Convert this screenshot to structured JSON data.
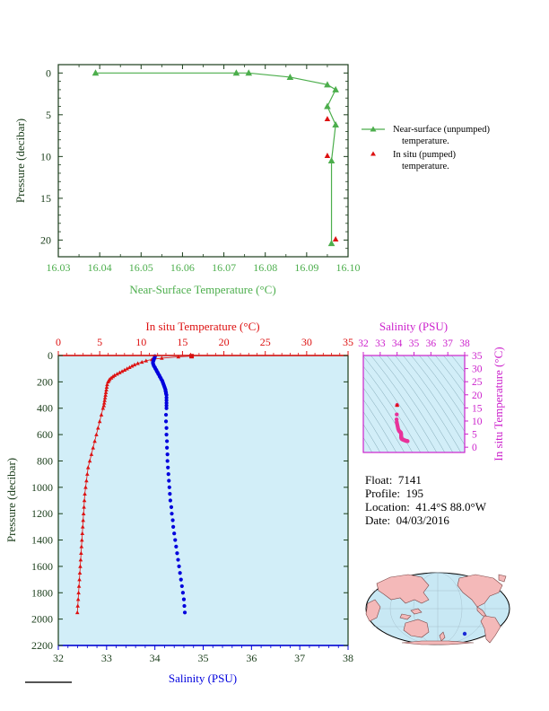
{
  "colors": {
    "green": "#4cae4c",
    "red": "#dd1111",
    "blue": "#0000dd",
    "magenta": "#cc22cc",
    "panel_bg": "#d2eef8",
    "axis_dark": "#1a3d1a",
    "land": "#f4b9b9",
    "ocean": "#c8e8f4"
  },
  "legend": {
    "near_surface_line1": "Near-surface (unpumped)",
    "near_surface_line2": "temperature.",
    "in_situ_line1": "In situ (pumped)",
    "in_situ_line2": "temperature."
  },
  "float_info": {
    "float_label": "Float:",
    "float_value": "7141",
    "profile_label": "Profile:",
    "profile_value": "195",
    "location_label": "Location:",
    "location_value": "41.4°S  88.0°W",
    "date_label": "Date:",
    "date_value": "04/03/2016"
  },
  "chart_data": [
    {
      "type": "line",
      "xlabel": "Near-Surface Temperature (°C)",
      "ylabel": "Pressure (decibar)",
      "xlim": [
        16.03,
        16.1
      ],
      "ylim": [
        22,
        -1
      ],
      "xticks": [
        16.03,
        16.04,
        16.05,
        16.06,
        16.07,
        16.08,
        16.09,
        16.1
      ],
      "xtick_labels": [
        "16.03",
        "16.04",
        "16.05",
        "16.06",
        "16.07",
        "16.08",
        "16.09",
        "16.10"
      ],
      "yticks": [
        0,
        5,
        10,
        15,
        20
      ],
      "ytick_labels": [
        "0",
        "5",
        "10",
        "15",
        "20"
      ],
      "series": [
        {
          "name": "Near-surface (unpumped) temperature.",
          "x": [
            16.039,
            16.073,
            16.076,
            16.086,
            16.095,
            16.097,
            16.095,
            16.097,
            16.096,
            16.096
          ],
          "y": [
            0.0,
            0.0,
            0.0,
            0.5,
            1.4,
            2.0,
            4.0,
            6.2,
            10.5,
            20.4
          ]
        },
        {
          "name": "In situ (pumped) temperature.",
          "x": [
            16.095,
            16.095,
            16.097
          ],
          "y": [
            5.5,
            9.9,
            19.9
          ]
        }
      ]
    },
    {
      "type": "scatter",
      "ylabel": "Pressure (decibar)",
      "top_xlabel": "In situ Temperature (°C)",
      "bottom_xlabel": "Salinity (PSU)",
      "temp_lim": [
        0,
        35
      ],
      "sal_lim": [
        32,
        38
      ],
      "ylim": [
        2200,
        0
      ],
      "temp_ticks": [
        0,
        5,
        10,
        15,
        20,
        25,
        30,
        35
      ],
      "temp_tick_labels": [
        "0",
        "5",
        "10",
        "15",
        "20",
        "25",
        "30",
        "35"
      ],
      "sal_ticks": [
        32,
        33,
        34,
        35,
        36,
        37,
        38
      ],
      "sal_tick_labels": [
        "32",
        "33",
        "34",
        "35",
        "36",
        "37",
        "38"
      ],
      "yticks": [
        0,
        200,
        400,
        600,
        800,
        1000,
        1200,
        1400,
        1600,
        1800,
        2000,
        2200
      ],
      "ytick_labels": [
        "0",
        "200",
        "400",
        "600",
        "800",
        "1000",
        "1200",
        "1400",
        "1600",
        "1800",
        "2000",
        "2200"
      ],
      "temperature_profile": {
        "pressure": [
          5,
          10,
          20,
          30,
          40,
          50,
          60,
          70,
          80,
          90,
          100,
          110,
          120,
          130,
          140,
          150,
          160,
          170,
          180,
          190,
          200,
          220,
          240,
          260,
          280,
          300,
          320,
          340,
          360,
          380,
          400,
          450,
          500,
          550,
          600,
          650,
          700,
          750,
          800,
          850,
          900,
          950,
          1000,
          1050,
          1100,
          1150,
          1200,
          1250,
          1300,
          1350,
          1400,
          1450,
          1500,
          1550,
          1600,
          1650,
          1700,
          1750,
          1800,
          1850,
          1900,
          1950
        ],
        "temperature": [
          16.1,
          14.5,
          12.5,
          11.3,
          10.6,
          10.1,
          9.6,
          9.2,
          8.9,
          8.6,
          8.3,
          8.0,
          7.7,
          7.4,
          7.1,
          6.8,
          6.6,
          6.4,
          6.2,
          6.1,
          6.0,
          5.9,
          5.85,
          5.8,
          5.75,
          5.7,
          5.65,
          5.6,
          5.55,
          5.5,
          5.4,
          5.2,
          5.0,
          4.8,
          4.6,
          4.4,
          4.2,
          4.0,
          3.8,
          3.6,
          3.5,
          3.4,
          3.3,
          3.2,
          3.15,
          3.1,
          3.05,
          3.0,
          2.95,
          2.9,
          2.85,
          2.8,
          2.75,
          2.7,
          2.65,
          2.6,
          2.55,
          2.5,
          2.45,
          2.4,
          2.35,
          2.3
        ]
      },
      "salinity_profile": {
        "pressure": [
          5,
          10,
          20,
          30,
          40,
          50,
          60,
          70,
          80,
          90,
          100,
          110,
          120,
          130,
          140,
          150,
          160,
          170,
          180,
          190,
          200,
          210,
          220,
          230,
          240,
          250,
          260,
          270,
          280,
          290,
          300,
          320,
          340,
          360,
          380,
          400,
          450,
          500,
          550,
          600,
          650,
          700,
          750,
          800,
          850,
          900,
          950,
          1000,
          1050,
          1100,
          1150,
          1200,
          1250,
          1300,
          1350,
          1400,
          1450,
          1500,
          1550,
          1600,
          1650,
          1700,
          1750,
          1800,
          1850,
          1900,
          1950
        ],
        "salinity": [
          34.0,
          34.0,
          33.99,
          33.98,
          33.97,
          33.96,
          33.96,
          33.97,
          33.98,
          34.0,
          34.01,
          34.03,
          34.04,
          34.06,
          34.07,
          34.09,
          34.1,
          34.12,
          34.13,
          34.15,
          34.16,
          34.17,
          34.18,
          34.19,
          34.2,
          34.21,
          34.22,
          34.22,
          34.23,
          34.23,
          34.24,
          34.24,
          34.24,
          34.24,
          34.24,
          34.24,
          34.23,
          34.23,
          34.24,
          34.24,
          34.25,
          34.25,
          34.26,
          34.26,
          34.27,
          34.28,
          34.29,
          34.3,
          34.31,
          34.32,
          34.34,
          34.35,
          34.37,
          34.38,
          34.4,
          34.42,
          34.44,
          34.46,
          34.48,
          34.5,
          34.52,
          34.54,
          34.56,
          34.58,
          34.6,
          34.61,
          34.62
        ]
      },
      "near_surface_point": {
        "temperature": 16.1,
        "pressure": 5
      }
    },
    {
      "type": "scatter",
      "top_xlabel": "Salinity (PSU)",
      "right_ylabel": "In situ Temperature (°C)",
      "sal_lim": [
        32,
        38
      ],
      "temp_lim": [
        -2,
        35
      ],
      "sal_ticks": [
        32,
        33,
        34,
        35,
        36,
        37,
        38
      ],
      "sal_tick_labels": [
        "32",
        "33",
        "34",
        "35",
        "36",
        "37",
        "38"
      ],
      "temp_ticks": [
        0,
        5,
        10,
        15,
        20,
        25,
        30,
        35
      ],
      "temp_tick_labels": [
        "0",
        "5",
        "10",
        "15",
        "20",
        "25",
        "30",
        "35"
      ],
      "ts_points": {
        "salinity": [
          34.0,
          33.98,
          33.97,
          33.98,
          34.0,
          34.02,
          34.04,
          34.06,
          34.09,
          34.12,
          34.15,
          34.17,
          34.19,
          34.21,
          34.22,
          34.23,
          34.24,
          34.24,
          34.24,
          34.24,
          34.25,
          34.26,
          34.28,
          34.3,
          34.33,
          34.36,
          34.4,
          34.44,
          34.48,
          34.52,
          34.56,
          34.6,
          34.62
        ],
        "temperature": [
          16.1,
          12.5,
          10.6,
          9.6,
          8.9,
          8.3,
          7.7,
          7.1,
          6.6,
          6.2,
          6.0,
          5.85,
          5.75,
          5.65,
          5.55,
          5.4,
          5.0,
          4.6,
          4.2,
          3.8,
          3.5,
          3.3,
          3.15,
          3.05,
          2.95,
          2.85,
          2.75,
          2.65,
          2.55,
          2.45,
          2.38,
          2.33,
          2.3
        ]
      }
    }
  ]
}
